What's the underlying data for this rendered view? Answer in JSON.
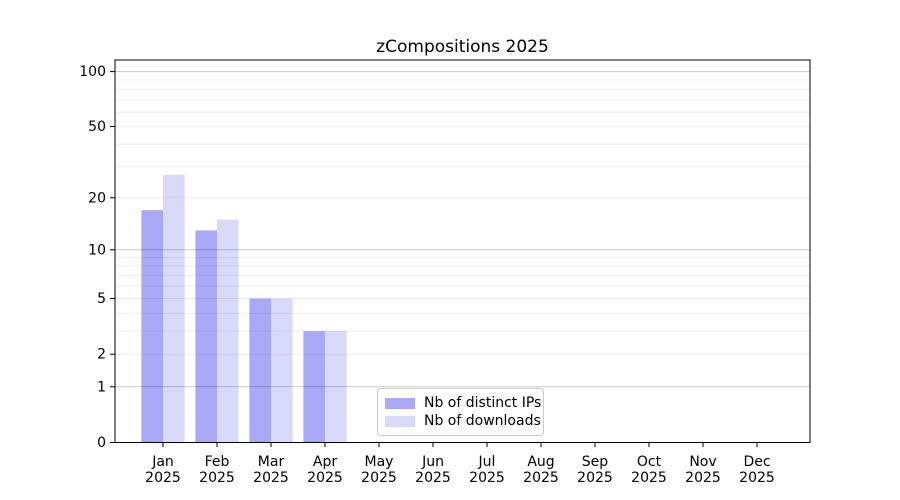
{
  "figure": {
    "background": "#ffffff"
  },
  "chart_data": {
    "type": "bar",
    "title": "zCompositions 2025",
    "categories": [
      "Jan",
      "Feb",
      "Mar",
      "Apr",
      "May",
      "Jun",
      "Jul",
      "Aug",
      "Sep",
      "Oct",
      "Nov",
      "Dec"
    ],
    "category_year": "2025",
    "series": [
      {
        "name": "Nb of distinct IPs",
        "color": "#a9a9f7",
        "values": [
          17,
          13,
          5,
          3,
          0,
          0,
          0,
          0,
          0,
          0,
          0,
          0
        ]
      },
      {
        "name": "Nb of downloads",
        "color": "#d9d9f9",
        "values": [
          27,
          15,
          5,
          3,
          0,
          0,
          0,
          0,
          0,
          0,
          0,
          0
        ]
      }
    ],
    "xlabel": "",
    "ylabel": "",
    "yscale": "log1p",
    "ylim": [
      0,
      115
    ],
    "yticks": [
      0,
      1,
      2,
      5,
      10,
      20,
      50,
      100
    ],
    "major_gridlines": [
      1,
      10,
      100
    ],
    "minor_gridlines": [
      2,
      3,
      4,
      5,
      6,
      7,
      8,
      9,
      20,
      30,
      40,
      50,
      60,
      70,
      80,
      90
    ],
    "grid": "on",
    "legend_position": "lower-center inside"
  },
  "legend": {
    "items": [
      {
        "label": "Nb of distinct IPs",
        "color": "#a9a9f7"
      },
      {
        "label": "Nb of downloads",
        "color": "#d9d9f9"
      }
    ]
  },
  "colors": {
    "axis": "#000000",
    "major_grid": "rgba(0,0,0,0.21)",
    "minor_grid": "rgba(0,0,0,0.07)",
    "text": "#000000"
  }
}
